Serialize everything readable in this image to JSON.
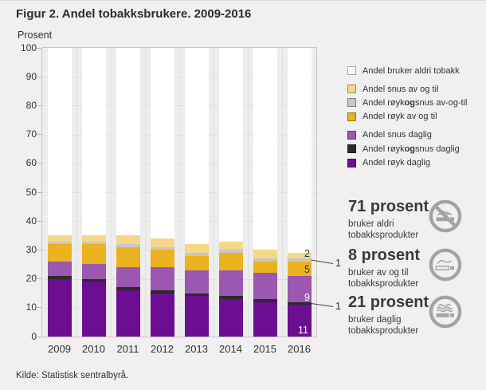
{
  "title": "Figur 2. Andel tobakksbrukere. 2009-2016",
  "y_axis_title": "Prosent",
  "source": "Kilde: Statistisk sentralbyrå.",
  "chart_data": {
    "type": "bar",
    "stacked": true,
    "title": "Figur 2. Andel tobakksbrukere. 2009-2016",
    "ylabel": "Prosent",
    "ylim": [
      0,
      100
    ],
    "ytick_interval": 10,
    "grid": true,
    "legend_position": "right",
    "categories": [
      "2009",
      "2010",
      "2011",
      "2012",
      "2013",
      "2014",
      "2015",
      "2016"
    ],
    "series": [
      {
        "name": "Andel røyk daglig",
        "color": "#6c0d92",
        "values": [
          20,
          19,
          16,
          15,
          14,
          13,
          12,
          11
        ]
      },
      {
        "name": "Andel røyk og snus daglig",
        "color": "#2b2b2b",
        "values": [
          1,
          1,
          1,
          1,
          1,
          1,
          1,
          1
        ]
      },
      {
        "name": "Andel snus daglig",
        "color": "#9c57b1",
        "values": [
          5,
          5,
          7,
          8,
          8,
          9,
          9,
          9
        ]
      },
      {
        "name": "Andel røyk av og til",
        "color": "#ecb11f",
        "values": [
          6,
          7,
          7,
          6,
          5,
          6,
          4,
          5
        ]
      },
      {
        "name": "Andel røyk og snus av-og-til",
        "color": "#c7c7c7",
        "values": [
          1,
          1,
          1,
          1,
          1,
          1,
          1,
          1
        ]
      },
      {
        "name": "Andel snus av og til",
        "color": "#f5d787",
        "values": [
          2,
          2,
          3,
          3,
          3,
          3,
          3,
          2
        ]
      },
      {
        "name": "Andel bruker aldri tobakk",
        "color": "#ffffff",
        "values": [
          65,
          65,
          65,
          66,
          68,
          67,
          70,
          71
        ]
      }
    ],
    "bar_value_labels": {
      "category": "2016",
      "labels": [
        "2",
        "1",
        "5",
        "9",
        "1",
        "11"
      ]
    }
  },
  "legend": {
    "items": [
      {
        "pre": "Andel bruker aldri tobakk",
        "bold": "",
        "post": "",
        "color": "#ffffff",
        "gap_after": true
      },
      {
        "pre": "Andel snus av og til",
        "bold": "",
        "post": "",
        "color": "#f5d787",
        "gap_after": false
      },
      {
        "pre": "Andel røyk ",
        "bold": "og",
        "post": " snus av-og-til",
        "color": "#c7c7c7",
        "gap_after": false
      },
      {
        "pre": "Andel røyk av og til",
        "bold": "",
        "post": "",
        "color": "#ecb11f",
        "gap_after": true
      },
      {
        "pre": "Andel snus daglig",
        "bold": "",
        "post": "",
        "color": "#9c57b1",
        "gap_after": false
      },
      {
        "pre": "Andel røyk ",
        "bold": "og",
        "post": " snus daglig",
        "color": "#2b2b2b",
        "gap_after": false
      },
      {
        "pre": "Andel røyk daglig",
        "bold": "",
        "post": "",
        "color": "#6c0d92",
        "gap_after": false
      }
    ]
  },
  "stats": [
    {
      "value": "71 prosent",
      "description": "bruker aldri tobakksprodukter",
      "icon": "no-smoking-icon"
    },
    {
      "value": "8 prosent",
      "description": "bruker av og til tobakksprodukter",
      "icon": "occasional-smoking-icon"
    },
    {
      "value": "21 prosent",
      "description": "bruker daglig tobakksprodukter",
      "icon": "daily-smoking-icon"
    }
  ]
}
